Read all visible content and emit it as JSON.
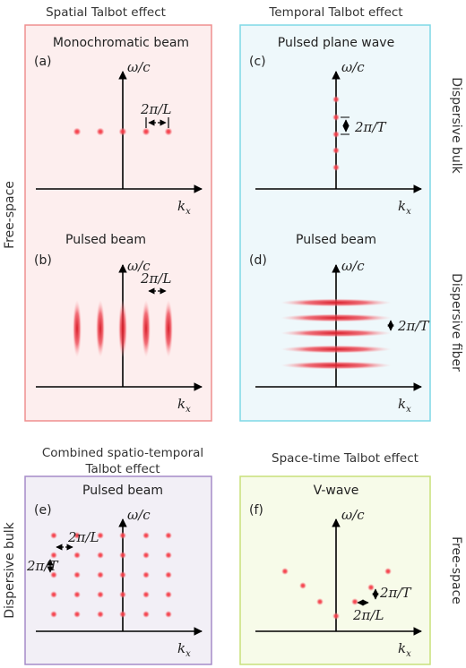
{
  "headings": {
    "spatial": "Spatial Talbot effect",
    "temporal": "Temporal Talbot effect",
    "combined_line1": "Combined spatio-temporal",
    "combined_line2": "Talbot effect",
    "spacetime": "Space-time Talbot effect"
  },
  "side_labels": {
    "free_space_left": "Free-space",
    "dispersive_bulk_right": "Dispersive bulk",
    "dispersive_fiber_right": "Dispersive fiber",
    "dispersive_bulk_left": "Dispersive bulk",
    "free_space_right": "Free-space"
  },
  "axes": {
    "vertical": "ω/c",
    "horizontal": "k",
    "horizontal_sub": "x"
  },
  "annotations": {
    "spatial_period": "2π/L",
    "temporal_period": "2π/T"
  },
  "panels": {
    "a": {
      "tag": "(a)",
      "title": "Monochromatic beam"
    },
    "b": {
      "tag": "(b)",
      "title": "Pulsed beam"
    },
    "c": {
      "tag": "(c)",
      "title": "Pulsed plane wave"
    },
    "d": {
      "tag": "(d)",
      "title": "Pulsed beam"
    },
    "e": {
      "tag": "(e)",
      "title": "Pulsed beam"
    },
    "f": {
      "tag": "(f)",
      "title": "V-wave"
    }
  },
  "colors": {
    "spatial_box_fill": "#fdeeee",
    "spatial_box_border": "#ef8f8f",
    "temporal_box_fill": "#eef8fb",
    "temporal_box_border": "#7fd8e6",
    "combined_box_fill": "#f2eff6",
    "combined_box_border": "#a58bc8",
    "spacetime_box_fill": "#f7fbe9",
    "spacetime_box_border": "#c9e07a",
    "spectral_spot": "#e8313a"
  }
}
